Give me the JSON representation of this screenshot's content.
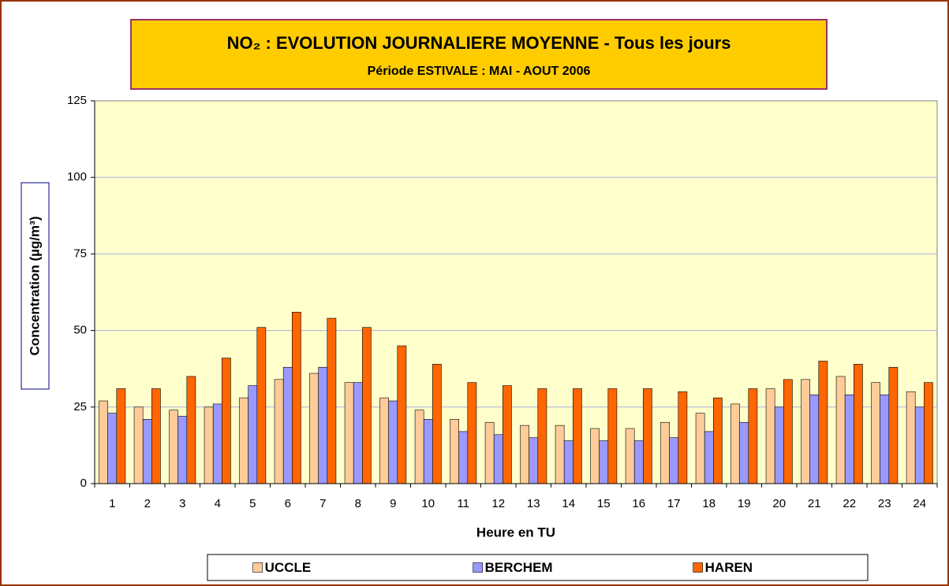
{
  "chart_data": {
    "type": "bar",
    "title": "NO₂ : EVOLUTION JOURNALIERE MOYENNE - Tous les jours",
    "subtitle": "Période ESTIVALE :  MAI - AOUT 2006",
    "x_label": "Heure en TU",
    "y_label": "Concentration (µg/m³)",
    "categories": [
      "1",
      "2",
      "3",
      "4",
      "5",
      "6",
      "7",
      "8",
      "9",
      "10",
      "11",
      "12",
      "13",
      "14",
      "15",
      "16",
      "17",
      "18",
      "19",
      "20",
      "21",
      "22",
      "23",
      "24"
    ],
    "series": [
      {
        "name": "UCCLE",
        "color": "#ffcc99",
        "values": [
          27,
          25,
          24,
          25,
          28,
          34,
          36,
          33,
          28,
          24,
          21,
          20,
          19,
          19,
          18,
          18,
          20,
          23,
          26,
          31,
          34,
          35,
          33,
          30
        ]
      },
      {
        "name": "BERCHEM",
        "color": "#9999ff",
        "values": [
          23,
          21,
          22,
          26,
          32,
          38,
          38,
          33,
          27,
          21,
          17,
          16,
          15,
          14,
          14,
          14,
          15,
          17,
          20,
          25,
          29,
          29,
          29,
          25
        ]
      },
      {
        "name": "HAREN",
        "color": "#ff6600",
        "values": [
          31,
          31,
          35,
          41,
          51,
          56,
          54,
          51,
          45,
          39,
          33,
          32,
          31,
          31,
          31,
          31,
          30,
          28,
          31,
          34,
          40,
          39,
          38,
          33
        ]
      }
    ],
    "ylim": [
      0,
      125
    ],
    "yticks": [
      0,
      25,
      50,
      75,
      100,
      125
    ],
    "grid": true,
    "legend": "bottom"
  }
}
